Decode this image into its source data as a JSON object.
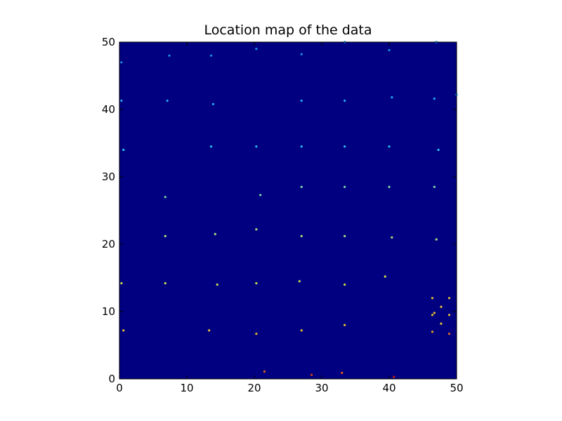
{
  "chart_data": {
    "type": "scatter",
    "title": "Location map of the data",
    "xlabel": "",
    "ylabel": "",
    "xlim": [
      0,
      50
    ],
    "ylim": [
      0,
      50
    ],
    "xticks": [
      0,
      10,
      20,
      30,
      40,
      50
    ],
    "yticks": [
      0,
      10,
      20,
      30,
      40,
      50
    ],
    "grid": false,
    "background_color": "#000080",
    "colormap": "jet",
    "points": [
      {
        "x": 0.3,
        "y": 47.0,
        "color": "#1a8fe0"
      },
      {
        "x": 7.4,
        "y": 48.0,
        "color": "#1a8fe0"
      },
      {
        "x": 13.6,
        "y": 48.0,
        "color": "#1a8fe0"
      },
      {
        "x": 20.3,
        "y": 49.0,
        "color": "#1a8fe0"
      },
      {
        "x": 27.0,
        "y": 48.2,
        "color": "#1a8fe0"
      },
      {
        "x": 33.4,
        "y": 50.0,
        "color": "#1a8fe0"
      },
      {
        "x": 40.0,
        "y": 48.8,
        "color": "#1a8fe0"
      },
      {
        "x": 47.0,
        "y": 50.0,
        "color": "#1a8fe0"
      },
      {
        "x": 0.3,
        "y": 41.3,
        "color": "#22a8f0"
      },
      {
        "x": 7.1,
        "y": 41.3,
        "color": "#22a8f0"
      },
      {
        "x": 13.9,
        "y": 40.8,
        "color": "#22a8f0"
      },
      {
        "x": 27.0,
        "y": 41.3,
        "color": "#22a8f0"
      },
      {
        "x": 33.4,
        "y": 41.3,
        "color": "#22a8f0"
      },
      {
        "x": 40.4,
        "y": 41.8,
        "color": "#22a8f0"
      },
      {
        "x": 46.7,
        "y": 41.6,
        "color": "#22a8f0"
      },
      {
        "x": 50.0,
        "y": 42.2,
        "color": "#22a8f0"
      },
      {
        "x": 0.6,
        "y": 34.0,
        "color": "#2ec4f2"
      },
      {
        "x": 13.6,
        "y": 34.5,
        "color": "#2ec4f2"
      },
      {
        "x": 20.3,
        "y": 34.5,
        "color": "#2ec4f2"
      },
      {
        "x": 27.0,
        "y": 34.5,
        "color": "#2ec4f2"
      },
      {
        "x": 33.4,
        "y": 34.5,
        "color": "#2ec4f2"
      },
      {
        "x": 40.0,
        "y": 34.5,
        "color": "#2ec4f2"
      },
      {
        "x": 47.3,
        "y": 34.0,
        "color": "#2ec4f2"
      },
      {
        "x": 6.8,
        "y": 27.0,
        "color": "#7dd8a8"
      },
      {
        "x": 20.9,
        "y": 27.3,
        "color": "#7dd8a8"
      },
      {
        "x": 27.0,
        "y": 28.5,
        "color": "#7dd8a8"
      },
      {
        "x": 33.4,
        "y": 28.5,
        "color": "#7dd8a8"
      },
      {
        "x": 40.0,
        "y": 28.5,
        "color": "#7dd8a8"
      },
      {
        "x": 46.7,
        "y": 28.5,
        "color": "#7dd8a8"
      },
      {
        "x": 6.8,
        "y": 21.2,
        "color": "#a8e07a"
      },
      {
        "x": 14.2,
        "y": 21.5,
        "color": "#a8e07a"
      },
      {
        "x": 20.3,
        "y": 22.2,
        "color": "#a8e07a"
      },
      {
        "x": 27.0,
        "y": 21.2,
        "color": "#a8e07a"
      },
      {
        "x": 33.4,
        "y": 21.2,
        "color": "#a8e07a"
      },
      {
        "x": 40.4,
        "y": 21.0,
        "color": "#a8e07a"
      },
      {
        "x": 47.0,
        "y": 20.7,
        "color": "#a8e07a"
      },
      {
        "x": 0.3,
        "y": 14.2,
        "color": "#cfe04a"
      },
      {
        "x": 6.8,
        "y": 14.2,
        "color": "#cfe04a"
      },
      {
        "x": 14.5,
        "y": 14.0,
        "color": "#cfe04a"
      },
      {
        "x": 20.3,
        "y": 14.2,
        "color": "#cfe04a"
      },
      {
        "x": 26.7,
        "y": 14.5,
        "color": "#cfe04a"
      },
      {
        "x": 33.4,
        "y": 14.0,
        "color": "#cfe04a"
      },
      {
        "x": 39.4,
        "y": 15.2,
        "color": "#cfe04a"
      },
      {
        "x": 0.6,
        "y": 7.2,
        "color": "#e8c030"
      },
      {
        "x": 13.3,
        "y": 7.2,
        "color": "#e8c030"
      },
      {
        "x": 20.3,
        "y": 6.7,
        "color": "#e8c030"
      },
      {
        "x": 27.0,
        "y": 7.2,
        "color": "#e8c030"
      },
      {
        "x": 33.4,
        "y": 8.0,
        "color": "#e8c030"
      },
      {
        "x": 46.4,
        "y": 12.0,
        "color": "#e8c030"
      },
      {
        "x": 48.9,
        "y": 12.0,
        "color": "#e8c030"
      },
      {
        "x": 47.7,
        "y": 10.7,
        "color": "#e8c030"
      },
      {
        "x": 46.4,
        "y": 9.5,
        "color": "#e8c030"
      },
      {
        "x": 46.7,
        "y": 9.8,
        "color": "#e8c030"
      },
      {
        "x": 48.9,
        "y": 9.5,
        "color": "#e8c030"
      },
      {
        "x": 47.7,
        "y": 8.2,
        "color": "#e8c030"
      },
      {
        "x": 46.4,
        "y": 7.0,
        "color": "#e8a020"
      },
      {
        "x": 48.9,
        "y": 6.7,
        "color": "#e07020"
      },
      {
        "x": 21.5,
        "y": 1.1,
        "color": "#e06018"
      },
      {
        "x": 28.5,
        "y": 0.6,
        "color": "#d04010"
      },
      {
        "x": 33.0,
        "y": 0.9,
        "color": "#e06018"
      },
      {
        "x": 40.7,
        "y": 0.3,
        "color": "#c02010"
      }
    ]
  }
}
